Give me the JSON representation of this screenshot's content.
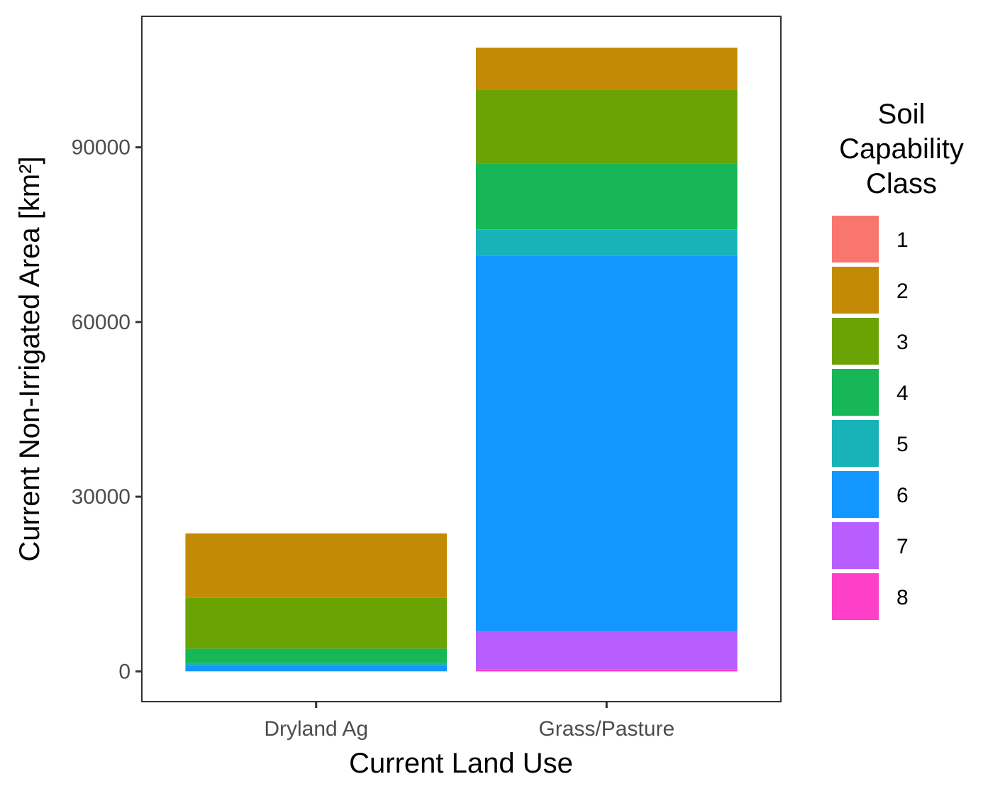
{
  "chart_data": {
    "type": "bar",
    "stacked": true,
    "xlabel": "Current Land Use",
    "ylabel": "Current Non-Irrigated Area [km²]",
    "ylim": [
      -5200,
      112500
    ],
    "yticks": [
      0,
      30000,
      60000,
      90000
    ],
    "yticklabels": [
      "0",
      "30000",
      "60000",
      "90000"
    ],
    "categories": [
      "Dryland Ag",
      "Grass/Pasture"
    ],
    "legend": {
      "title_lines": [
        "Soil",
        "Capability",
        "Class"
      ],
      "position": "right"
    },
    "grid": false,
    "series": [
      {
        "name": "1",
        "color": "#F8766D",
        "values": [
          0,
          0
        ]
      },
      {
        "name": "2",
        "color": "#C38B05",
        "values": [
          11100,
          7200
        ]
      },
      {
        "name": "3",
        "color": "#6BA304",
        "values": [
          8700,
          12700
        ]
      },
      {
        "name": "4",
        "color": "#17B656",
        "values": [
          2500,
          11300
        ]
      },
      {
        "name": "5",
        "color": "#17B3B9",
        "values": [
          300,
          4500
        ]
      },
      {
        "name": "6",
        "color": "#1496FF",
        "values": [
          1100,
          64500
        ]
      },
      {
        "name": "7",
        "color": "#B85EFF",
        "values": [
          0,
          6600
        ]
      },
      {
        "name": "8",
        "color": "#FD40C7",
        "values": [
          0,
          300
        ]
      }
    ]
  }
}
